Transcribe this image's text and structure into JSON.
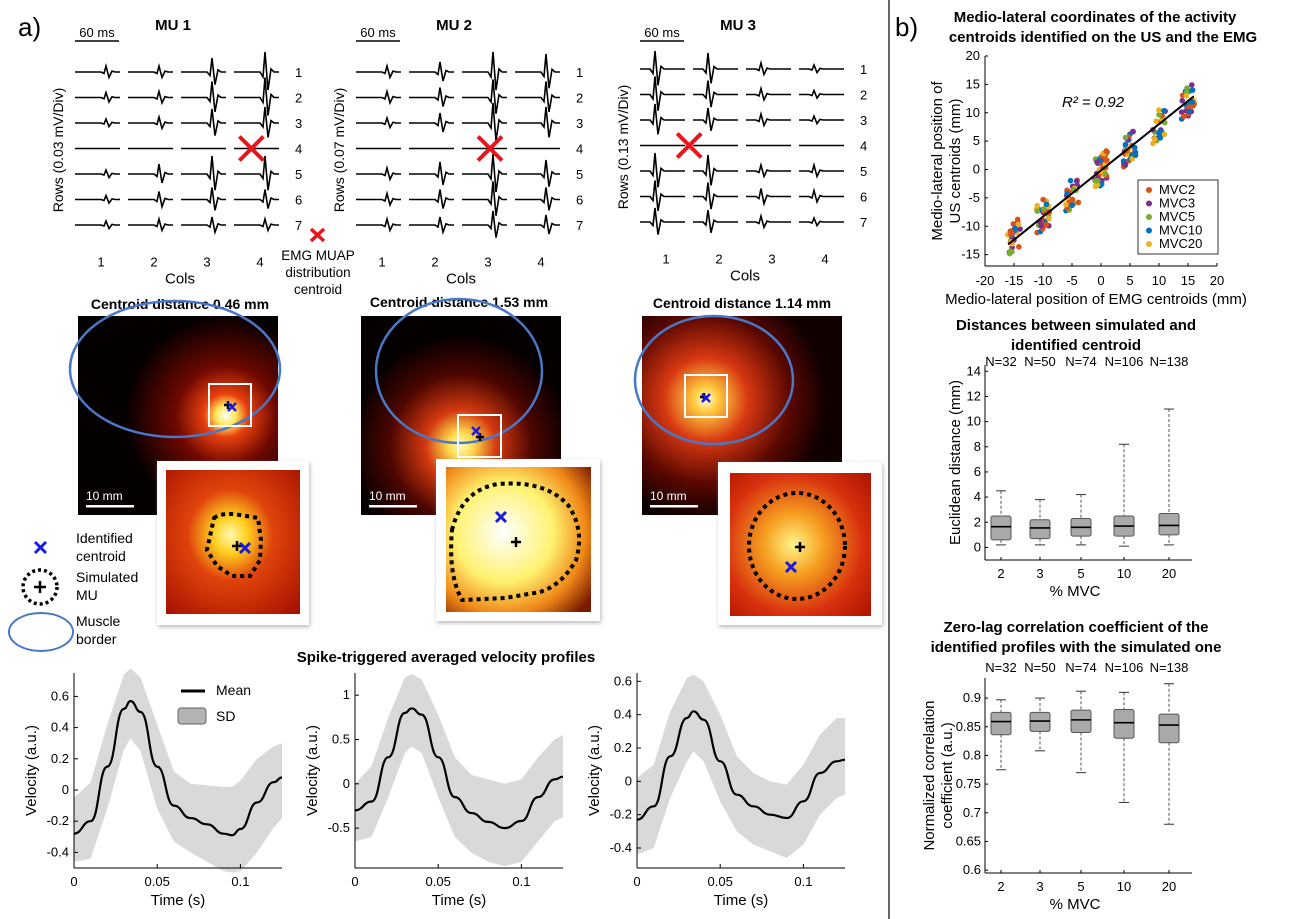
{
  "panel_a": {
    "label": "a)",
    "emg": {
      "scale_label": "60 ms",
      "cols_label": "Cols",
      "col_ticks": [
        "1",
        "2",
        "3",
        "4"
      ],
      "row_ticks": [
        "1",
        "2",
        "3",
        "4",
        "5",
        "6",
        "7"
      ],
      "legend_lines": [
        "EMG MUAP",
        "distribution",
        "centroid"
      ],
      "mus": [
        {
          "title": "MU 1",
          "ylabel": "Rows (0.03 mV/Div)",
          "cross_col": 3.8,
          "cross_row": 4
        },
        {
          "title": "MU 2",
          "ylabel": "Rows (0.07 mV/Div)",
          "cross_col": 3.0,
          "cross_row": 4
        },
        {
          "title": "MU 3",
          "ylabel": "Rows (0.13 mV/Div)",
          "cross_col": 1.4,
          "cross_row": 4
        }
      ]
    },
    "us_maps": {
      "scale_label": "10  mm",
      "maps": [
        {
          "title": "Centroid distance 0.46 mm"
        },
        {
          "title": "Centroid distance 1.53 mm"
        },
        {
          "title": "Centroid distance 1.14 mm"
        }
      ],
      "legend": {
        "identified": [
          "Identified",
          "centroid"
        ],
        "simulated": [
          "Simulated",
          "MU"
        ],
        "border": [
          "Muscle",
          "border"
        ]
      }
    },
    "velocity": {
      "title": "Spike-triggered averaged velocity profiles",
      "xlabel": "Time (s)",
      "ylabel": "Velocity (a.u.)",
      "legend_mean": "Mean",
      "legend_sd": "SD",
      "xticks": [
        "0",
        "0.05",
        "0.1"
      ]
    }
  },
  "panel_b": {
    "label": "b)"
  },
  "chart_data": [
    {
      "type": "line",
      "title": "",
      "xlabel": "Time (s)",
      "ylabel": "Velocity (a.u.)",
      "xlim": [
        0,
        0.125
      ],
      "ylim": [
        -0.5,
        0.75
      ],
      "yticks": [
        -0.4,
        -0.2,
        0,
        0.2,
        0.4,
        0.6
      ],
      "x": [
        0,
        0.01,
        0.02,
        0.03,
        0.034,
        0.04,
        0.05,
        0.06,
        0.07,
        0.08,
        0.09,
        0.095,
        0.1,
        0.11,
        0.12,
        0.125
      ],
      "series": [
        {
          "name": "Mean",
          "values": [
            -0.28,
            -0.2,
            0.15,
            0.52,
            0.57,
            0.5,
            0.15,
            -0.1,
            -0.18,
            -0.22,
            -0.28,
            -0.29,
            -0.25,
            -0.08,
            0.05,
            0.08
          ]
        },
        {
          "name": "SD upper",
          "values": [
            -0.05,
            0.05,
            0.42,
            0.74,
            0.78,
            0.72,
            0.42,
            0.12,
            0.04,
            0.03,
            0.02,
            0.02,
            0.06,
            0.2,
            0.28,
            0.3
          ]
        },
        {
          "name": "SD lower",
          "values": [
            -0.46,
            -0.44,
            -0.12,
            0.26,
            0.33,
            0.25,
            -0.12,
            -0.33,
            -0.4,
            -0.46,
            -0.52,
            -0.53,
            -0.52,
            -0.4,
            -0.24,
            -0.18
          ]
        }
      ]
    },
    {
      "type": "line",
      "title": "",
      "xlabel": "Time (s)",
      "ylabel": "Velocity (a.u.)",
      "xlim": [
        0,
        0.125
      ],
      "ylim": [
        -0.95,
        1.25
      ],
      "yticks": [
        -0.5,
        0,
        0.5,
        1
      ],
      "x": [
        0,
        0.01,
        0.02,
        0.03,
        0.034,
        0.04,
        0.05,
        0.06,
        0.07,
        0.08,
        0.09,
        0.1,
        0.11,
        0.12,
        0.125
      ],
      "series": [
        {
          "name": "Mean",
          "values": [
            -0.3,
            -0.2,
            0.3,
            0.8,
            0.85,
            0.78,
            0.3,
            -0.15,
            -0.33,
            -0.43,
            -0.5,
            -0.42,
            -0.15,
            0.05,
            0.08
          ]
        },
        {
          "name": "SD upper",
          "values": [
            0.0,
            0.2,
            0.75,
            1.2,
            1.24,
            1.18,
            0.78,
            0.3,
            0.1,
            0.05,
            0.0,
            0.05,
            0.3,
            0.5,
            0.55
          ]
        },
        {
          "name": "SD lower",
          "values": [
            -0.65,
            -0.6,
            -0.15,
            0.35,
            0.42,
            0.35,
            -0.15,
            -0.6,
            -0.78,
            -0.88,
            -0.93,
            -0.88,
            -0.65,
            -0.42,
            -0.38
          ]
        }
      ]
    },
    {
      "type": "line",
      "title": "",
      "xlabel": "Time (s)",
      "ylabel": "Velocity (a.u.)",
      "xlim": [
        0,
        0.125
      ],
      "ylim": [
        -0.52,
        0.65
      ],
      "yticks": [
        -0.4,
        -0.2,
        0,
        0.2,
        0.4,
        0.6
      ],
      "x": [
        0,
        0.01,
        0.02,
        0.03,
        0.034,
        0.04,
        0.05,
        0.06,
        0.07,
        0.08,
        0.09,
        0.1,
        0.11,
        0.12,
        0.125
      ],
      "series": [
        {
          "name": "Mean",
          "values": [
            -0.23,
            -0.15,
            0.15,
            0.38,
            0.42,
            0.37,
            0.12,
            -0.08,
            -0.15,
            -0.2,
            -0.22,
            -0.12,
            0.05,
            0.12,
            0.13
          ]
        },
        {
          "name": "SD upper",
          "values": [
            0.02,
            0.1,
            0.42,
            0.62,
            0.64,
            0.6,
            0.4,
            0.15,
            0.05,
            0.0,
            -0.02,
            0.1,
            0.28,
            0.38,
            0.38
          ]
        },
        {
          "name": "SD lower",
          "values": [
            -0.44,
            -0.4,
            -0.1,
            0.12,
            0.18,
            0.12,
            -0.12,
            -0.3,
            -0.38,
            -0.42,
            -0.46,
            -0.38,
            -0.2,
            -0.1,
            -0.08
          ]
        }
      ]
    },
    {
      "type": "scatter",
      "title": "Medio-lateral coordinates of the activity centroids identified on the US and the EMG",
      "xlabel": "Medio-lateral position of EMG centroids (mm)",
      "ylabel": "Medio-lateral position of US centroids (mm)",
      "xlim": [
        -20,
        20
      ],
      "ylim": [
        -17,
        20
      ],
      "xticks": [
        -20,
        -15,
        -10,
        -5,
        0,
        5,
        10,
        15,
        20
      ],
      "yticks": [
        -15,
        -10,
        -5,
        0,
        5,
        10,
        15,
        20
      ],
      "annotation": "R² = 0.92",
      "fit_line": {
        "x": [
          -16,
          16
        ],
        "y": [
          -13.2,
          12.9
        ]
      },
      "legend": [
        "MVC2",
        "MVC3",
        "MVC5",
        "MVC10",
        "MVC20"
      ],
      "series_colors": [
        "#d95319",
        "#7e2f8e",
        "#77ac30",
        "#0072bd",
        "#edb120"
      ]
    },
    {
      "type": "box",
      "title": "Distances between simulated and identified centroid",
      "xlabel": "% MVC",
      "ylabel": "Euclidean distance (mm)",
      "categories": [
        "2",
        "3",
        "5",
        "10",
        "20"
      ],
      "counts": [
        "N=32",
        "N=50",
        "N=74",
        "N=106",
        "N=138"
      ],
      "ylim": [
        -1,
        14.5
      ],
      "yticks": [
        0,
        2,
        4,
        6,
        8,
        10,
        12,
        14
      ],
      "boxes": [
        {
          "min": 0.2,
          "q1": 0.6,
          "median": 1.65,
          "q3": 2.5,
          "max": 4.5
        },
        {
          "min": 0.2,
          "q1": 0.7,
          "median": 1.55,
          "q3": 2.2,
          "max": 3.8
        },
        {
          "min": 0.2,
          "q1": 0.9,
          "median": 1.6,
          "q3": 2.3,
          "max": 4.2
        },
        {
          "min": 0.1,
          "q1": 0.9,
          "median": 1.7,
          "q3": 2.5,
          "max": 8.2
        },
        {
          "min": 0.2,
          "q1": 1.0,
          "median": 1.75,
          "q3": 2.7,
          "max": 11.0
        }
      ]
    },
    {
      "type": "box",
      "title": "Zero-lag correlation coefficient of the identified profiles with the simulated one",
      "xlabel": "% MVC",
      "ylabel": "Normalized correlation coefficient (a.u.)",
      "categories": [
        "2",
        "3",
        "5",
        "10",
        "20"
      ],
      "counts": [
        "N=32",
        "N=50",
        "N=74",
        "N=106",
        "N=138"
      ],
      "ylim": [
        0.595,
        0.935
      ],
      "yticks": [
        0.6,
        0.65,
        0.7,
        0.75,
        0.8,
        0.85,
        0.9
      ],
      "boxes": [
        {
          "min": 0.775,
          "q1": 0.836,
          "median": 0.859,
          "q3": 0.875,
          "max": 0.897
        },
        {
          "min": 0.808,
          "q1": 0.842,
          "median": 0.86,
          "q3": 0.875,
          "max": 0.9
        },
        {
          "min": 0.77,
          "q1": 0.84,
          "median": 0.862,
          "q3": 0.879,
          "max": 0.912
        },
        {
          "min": 0.718,
          "q1": 0.83,
          "median": 0.857,
          "q3": 0.88,
          "max": 0.91
        },
        {
          "min": 0.68,
          "q1": 0.822,
          "median": 0.853,
          "q3": 0.872,
          "max": 0.925
        }
      ]
    }
  ]
}
